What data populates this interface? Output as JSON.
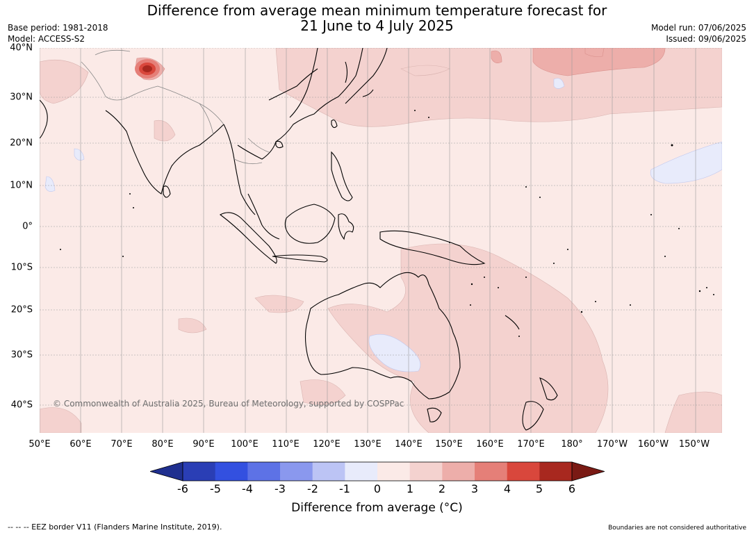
{
  "title_line1": "Difference from average mean minimum temperature forecast for",
  "title_line2": "21 June to 4 July 2025",
  "base_period": "Base period: 1981-2018",
  "model": "Model: ACCESS-S2",
  "model_run": "Model run: 07/06/2025",
  "issued": "Issued: 09/06/2025",
  "copyright": "© Commonwealth of Australia 2025, Bureau of Meteorology, supported by COSPPac",
  "lat_labels": [
    "40°N",
    "30°N",
    "20°N",
    "10°N",
    "0°",
    "10°S",
    "20°S",
    "30°S",
    "40°S"
  ],
  "lon_labels": [
    "50°E",
    "60°E",
    "70°E",
    "80°E",
    "90°E",
    "100°E",
    "110°E",
    "120°E",
    "130°E",
    "140°E",
    "150°E",
    "160°E",
    "170°E",
    "180°",
    "170°W",
    "160°W",
    "150°W"
  ],
  "colorbar": {
    "ticks": [
      "-6",
      "-5",
      "-4",
      "-3",
      "-2",
      "-1",
      "0",
      "1",
      "2",
      "3",
      "4",
      "5",
      "6"
    ],
    "colors": [
      "#1f2f8f",
      "#2a3eb5",
      "#3350e0",
      "#5d72e6",
      "#8a98ee",
      "#bcc4f5",
      "#e8ebfb",
      "#fbeae7",
      "#f4d2cf",
      "#edaeaa",
      "#e57f78",
      "#d9473c",
      "#a8281f",
      "#7a1a14"
    ],
    "label": "Difference from average (°C)"
  },
  "eez_note": "--  --  -- EEZ border V11 (Flanders Marine Institute, 2019).",
  "boundaries_note": "Boundaries are not considered authoritative"
}
